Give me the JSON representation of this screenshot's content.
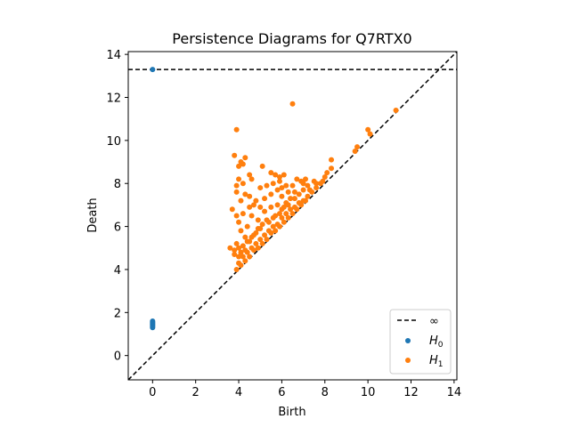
{
  "chart_data": {
    "type": "scatter",
    "title": "Persistence Diagrams for Q7RTX0",
    "xlabel": "Birth",
    "ylabel": "Death",
    "xlim": [
      -1.13,
      14.13
    ],
    "ylim": [
      -1.13,
      14.13
    ],
    "xticks": [
      "0",
      "2",
      "4",
      "6",
      "8",
      "10",
      "12",
      "14"
    ],
    "yticks": [
      "0",
      "2",
      "4",
      "6",
      "8",
      "10",
      "12",
      "14"
    ],
    "infinity_value": 13.3,
    "legend_position": "lower-right",
    "legend": [
      "∞",
      "H0",
      "H1"
    ],
    "colors": {
      "H0": "#1f77b4",
      "H1": "#ff7f0e",
      "line": "#000000"
    },
    "series": [
      {
        "name": "H0",
        "points": [
          [
            0,
            13.3
          ],
          [
            0,
            1.6
          ],
          [
            0,
            1.55
          ],
          [
            0,
            1.5
          ],
          [
            0,
            1.45
          ],
          [
            0,
            1.4
          ],
          [
            0,
            1.35
          ],
          [
            0,
            1.3
          ]
        ]
      },
      {
        "name": "H1",
        "points": [
          [
            3.9,
            10.5
          ],
          [
            6.5,
            11.7
          ],
          [
            11.3,
            11.4
          ],
          [
            10.0,
            10.5
          ],
          [
            10.1,
            10.3
          ],
          [
            9.5,
            9.7
          ],
          [
            9.4,
            9.5
          ],
          [
            3.8,
            9.3
          ],
          [
            4.0,
            8.8
          ],
          [
            4.1,
            9.0
          ],
          [
            4.2,
            8.9
          ],
          [
            4.3,
            9.2
          ],
          [
            4.0,
            8.2
          ],
          [
            3.9,
            7.9
          ],
          [
            4.2,
            8.0
          ],
          [
            4.3,
            7.5
          ],
          [
            4.1,
            7.2
          ],
          [
            3.9,
            7.6
          ],
          [
            4.5,
            8.4
          ],
          [
            4.6,
            8.2
          ],
          [
            5.1,
            8.8
          ],
          [
            5.5,
            8.5
          ],
          [
            5.7,
            8.4
          ],
          [
            5.9,
            8.3
          ],
          [
            6.1,
            8.4
          ],
          [
            5.0,
            7.8
          ],
          [
            5.3,
            7.9
          ],
          [
            5.6,
            8.0
          ],
          [
            5.8,
            7.7
          ],
          [
            6.0,
            7.8
          ],
          [
            6.3,
            7.6
          ],
          [
            6.5,
            7.9
          ],
          [
            6.7,
            8.2
          ],
          [
            6.9,
            8.1
          ],
          [
            7.1,
            8.2
          ],
          [
            7.2,
            7.9
          ],
          [
            7.5,
            8.1
          ],
          [
            7.8,
            8.0
          ],
          [
            8.1,
            8.5
          ],
          [
            8.3,
            9.1
          ],
          [
            8.3,
            8.7
          ],
          [
            8.0,
            8.3
          ],
          [
            7.9,
            8.1
          ],
          [
            7.6,
            7.8
          ],
          [
            7.4,
            7.6
          ],
          [
            7.2,
            7.4
          ],
          [
            7.0,
            7.2
          ],
          [
            6.8,
            7.1
          ],
          [
            6.6,
            6.9
          ],
          [
            6.4,
            6.8
          ],
          [
            6.2,
            6.6
          ],
          [
            6.0,
            6.4
          ],
          [
            5.8,
            6.1
          ],
          [
            5.6,
            6.0
          ],
          [
            5.4,
            5.8
          ],
          [
            5.2,
            5.6
          ],
          [
            5.0,
            5.4
          ],
          [
            4.8,
            5.2
          ],
          [
            4.6,
            5.0
          ],
          [
            4.4,
            4.8
          ],
          [
            4.2,
            4.6
          ],
          [
            4.0,
            4.3
          ],
          [
            3.9,
            4.0
          ],
          [
            4.1,
            4.2
          ],
          [
            4.3,
            4.4
          ],
          [
            4.5,
            4.6
          ],
          [
            4.7,
            4.9
          ],
          [
            4.9,
            5.0
          ],
          [
            5.1,
            5.2
          ],
          [
            5.3,
            5.4
          ],
          [
            5.5,
            5.7
          ],
          [
            5.7,
            5.8
          ],
          [
            5.9,
            6.0
          ],
          [
            6.1,
            6.2
          ],
          [
            6.3,
            6.4
          ],
          [
            6.5,
            6.6
          ],
          [
            6.7,
            6.8
          ],
          [
            6.9,
            7.0
          ],
          [
            7.1,
            7.2
          ],
          [
            3.7,
            6.8
          ],
          [
            3.9,
            6.5
          ],
          [
            4.2,
            6.6
          ],
          [
            4.0,
            6.2
          ],
          [
            4.4,
            6.0
          ],
          [
            4.6,
            6.5
          ],
          [
            4.9,
            6.3
          ],
          [
            5.2,
            6.7
          ],
          [
            5.5,
            6.9
          ],
          [
            5.8,
            7.0
          ],
          [
            6.0,
            6.8
          ],
          [
            6.2,
            7.1
          ],
          [
            6.4,
            7.3
          ],
          [
            5.0,
            6.9
          ],
          [
            4.8,
            7.2
          ],
          [
            4.5,
            7.4
          ],
          [
            4.7,
            7.0
          ],
          [
            5.2,
            7.3
          ],
          [
            5.5,
            7.5
          ],
          [
            6.3,
            7.0
          ],
          [
            6.0,
            7.4
          ],
          [
            4.1,
            5.8
          ],
          [
            4.3,
            5.5
          ],
          [
            4.5,
            5.3
          ],
          [
            4.7,
            5.6
          ],
          [
            4.9,
            5.9
          ],
          [
            5.1,
            6.1
          ],
          [
            5.3,
            6.3
          ],
          [
            5.6,
            6.4
          ],
          [
            5.9,
            6.6
          ],
          [
            3.9,
            5.2
          ],
          [
            4.0,
            5.0
          ],
          [
            4.2,
            5.1
          ],
          [
            4.4,
            5.3
          ],
          [
            3.8,
            4.9
          ],
          [
            3.6,
            5.0
          ],
          [
            3.8,
            4.7
          ],
          [
            4.0,
            4.6
          ],
          [
            4.1,
            4.8
          ],
          [
            4.3,
            4.9
          ],
          [
            4.6,
            5.5
          ],
          [
            4.8,
            5.7
          ],
          [
            5.0,
            5.9
          ],
          [
            5.4,
            6.2
          ],
          [
            5.7,
            6.5
          ],
          [
            6.1,
            6.9
          ],
          [
            6.6,
            7.3
          ],
          [
            6.8,
            7.5
          ],
          [
            7.0,
            7.7
          ],
          [
            7.3,
            7.7
          ],
          [
            7.6,
            8.0
          ],
          [
            5.9,
            8.1
          ],
          [
            6.2,
            7.9
          ],
          [
            6.6,
            7.6
          ],
          [
            7.0,
            8.0
          ],
          [
            4.5,
            6.9
          ]
        ]
      }
    ]
  }
}
